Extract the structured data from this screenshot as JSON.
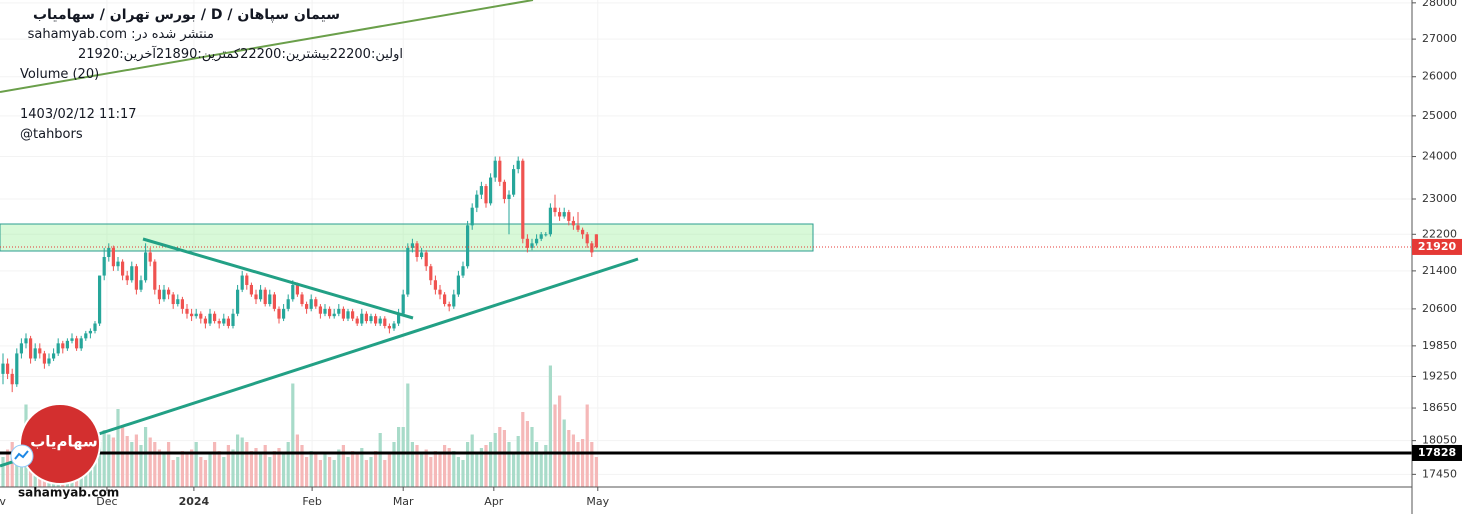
{
  "chart_data": {
    "type": "candlestick",
    "title": "سیمان سپاهان  /  D  /  بورس تهران / سهامیاب",
    "published_label": "منتشر شده در:",
    "published_site": "sahamyab.com",
    "ohlc": [
      {
        "label": "اولین:",
        "value": 22200
      },
      {
        "label": "بیشترین:",
        "value": 22200
      },
      {
        "label": "کمترین:",
        "value": 21890
      },
      {
        "label": "آخرین:",
        "value": 21920
      }
    ],
    "indicator": "Volume (20)",
    "datetime": "1403/02/12 11:17",
    "author": "@tahbors",
    "logo_text": "سهام‌یاب",
    "watermark": "sahamyab.com",
    "log_scale": true,
    "grid": true,
    "up_color": "#26a69a",
    "down_color": "#ef5350",
    "volume_up_color": "#a8dbc9",
    "volume_down_color": "#f5b8b8",
    "ylim": [
      17230,
      28080
    ],
    "yticks": [
      28000,
      27000,
      26000,
      25000,
      24000,
      23000,
      22200,
      21400,
      20600,
      19850,
      19250,
      18650,
      18050,
      17450
    ],
    "xlim": [
      -0.65,
      306.3
    ],
    "xticks": [
      {
        "value": -1.7,
        "label": "Nov"
      },
      {
        "value": 22.6,
        "label": "Dec"
      },
      {
        "value": 41.5,
        "label": "2024"
      },
      {
        "value": 67.2,
        "label": "Feb"
      },
      {
        "value": 87,
        "label": "Mar"
      },
      {
        "value": 106.7,
        "label": "Apr"
      },
      {
        "value": 129.3,
        "label": "May"
      }
    ],
    "last_price": 21920,
    "last_price_color": "#e53935",
    "hline": 17828,
    "hline_color": "#000000",
    "volume_ylim": [
      0,
      100
    ],
    "candles": [
      [
        19300,
        19700,
        19100,
        19500
      ],
      [
        19500,
        19600,
        19200,
        19300
      ],
      [
        19300,
        19400,
        18950,
        19100
      ],
      [
        19100,
        19800,
        19050,
        19700
      ],
      [
        19700,
        20000,
        19600,
        19900
      ],
      [
        19900,
        20100,
        19800,
        20000
      ],
      [
        20000,
        20050,
        19500,
        19600
      ],
      [
        19600,
        19900,
        19550,
        19800
      ],
      [
        19800,
        19900,
        19600,
        19700
      ],
      [
        19700,
        19750,
        19400,
        19500
      ],
      [
        19500,
        19700,
        19450,
        19600
      ],
      [
        19600,
        19800,
        19550,
        19700
      ],
      [
        19700,
        20000,
        19650,
        19900
      ],
      [
        19900,
        19950,
        19700,
        19800
      ],
      [
        19800,
        20000,
        19750,
        19950
      ],
      [
        19950,
        20100,
        19900,
        20000
      ],
      [
        20000,
        20050,
        19750,
        19800
      ],
      [
        19800,
        20050,
        19750,
        20000
      ],
      [
        20000,
        20150,
        19950,
        20100
      ],
      [
        20100,
        20200,
        20000,
        20150
      ],
      [
        20150,
        20350,
        20100,
        20300
      ],
      [
        20300,
        21300,
        20250,
        21300
      ],
      [
        21300,
        21900,
        21200,
        21700
      ],
      [
        21700,
        22000,
        21600,
        21900
      ],
      [
        21900,
        21950,
        21400,
        21500
      ],
      [
        21500,
        21700,
        21400,
        21600
      ],
      [
        21600,
        21650,
        21200,
        21300
      ],
      [
        21300,
        21400,
        21100,
        21200
      ],
      [
        21200,
        21600,
        21150,
        21500
      ],
      [
        21500,
        21550,
        20900,
        21000
      ],
      [
        21000,
        21300,
        20950,
        21200
      ],
      [
        21200,
        22000,
        21150,
        21800
      ],
      [
        21800,
        21900,
        21500,
        21600
      ],
      [
        21600,
        21650,
        20900,
        21000
      ],
      [
        21000,
        21100,
        20700,
        20800
      ],
      [
        20800,
        21100,
        20750,
        21000
      ],
      [
        21000,
        21050,
        20800,
        20900
      ],
      [
        20900,
        20950,
        20600,
        20700
      ],
      [
        20700,
        20900,
        20650,
        20800
      ],
      [
        20800,
        20850,
        20500,
        20600
      ],
      [
        20600,
        20700,
        20400,
        20500
      ],
      [
        20500,
        20600,
        20350,
        20450
      ],
      [
        20450,
        20600,
        20400,
        20500
      ],
      [
        20500,
        20550,
        20300,
        20400
      ],
      [
        20400,
        20450,
        20200,
        20300
      ],
      [
        20300,
        20600,
        20250,
        20500
      ],
      [
        20500,
        20550,
        20300,
        20350
      ],
      [
        20350,
        20400,
        20200,
        20300
      ],
      [
        20300,
        20500,
        20250,
        20400
      ],
      [
        20400,
        20450,
        20200,
        20250
      ],
      [
        20250,
        20600,
        20200,
        20500
      ],
      [
        20500,
        21100,
        20450,
        21000
      ],
      [
        21000,
        21400,
        20950,
        21300
      ],
      [
        21300,
        21350,
        21000,
        21100
      ],
      [
        21100,
        21150,
        20850,
        20900
      ],
      [
        20900,
        21000,
        20700,
        20800
      ],
      [
        20800,
        21100,
        20750,
        21000
      ],
      [
        21000,
        21050,
        20650,
        20700
      ],
      [
        20700,
        21000,
        20650,
        20900
      ],
      [
        20900,
        20950,
        20550,
        20600
      ],
      [
        20600,
        20650,
        20300,
        20400
      ],
      [
        20400,
        20700,
        20350,
        20600
      ],
      [
        20600,
        20900,
        20550,
        20800
      ],
      [
        20800,
        21200,
        20750,
        21100
      ],
      [
        21100,
        21150,
        20850,
        20900
      ],
      [
        20900,
        20950,
        20650,
        20700
      ],
      [
        20700,
        20750,
        20500,
        20600
      ],
      [
        20600,
        20900,
        20550,
        20800
      ],
      [
        20800,
        20850,
        20600,
        20650
      ],
      [
        20650,
        20700,
        20400,
        20500
      ],
      [
        20500,
        20700,
        20450,
        20600
      ],
      [
        20600,
        20650,
        20400,
        20450
      ],
      [
        20450,
        20600,
        20400,
        20500
      ],
      [
        20500,
        20700,
        20450,
        20600
      ],
      [
        20600,
        20650,
        20350,
        20400
      ],
      [
        20400,
        20600,
        20350,
        20550
      ],
      [
        20550,
        20600,
        20350,
        20400
      ],
      [
        20400,
        20450,
        20250,
        20300
      ],
      [
        20300,
        20600,
        20250,
        20500
      ],
      [
        20500,
        20550,
        20300,
        20350
      ],
      [
        20350,
        20500,
        20300,
        20450
      ],
      [
        20450,
        20500,
        20250,
        20300
      ],
      [
        20300,
        20450,
        20250,
        20400
      ],
      [
        20400,
        20450,
        20200,
        20250
      ],
      [
        20250,
        20300,
        20100,
        20200
      ],
      [
        20200,
        20350,
        20150,
        20300
      ],
      [
        20300,
        20600,
        20250,
        20500
      ],
      [
        20500,
        21000,
        20450,
        20900
      ],
      [
        20900,
        22000,
        20850,
        21900
      ],
      [
        21900,
        22100,
        21800,
        22000
      ],
      [
        22000,
        22050,
        21600,
        21700
      ],
      [
        21700,
        21900,
        21650,
        21800
      ],
      [
        21800,
        21850,
        21400,
        21500
      ],
      [
        21500,
        21550,
        21100,
        21200
      ],
      [
        21200,
        21300,
        20900,
        21000
      ],
      [
        21000,
        21100,
        20800,
        20900
      ],
      [
        20900,
        20950,
        20650,
        20700
      ],
      [
        20700,
        20750,
        20550,
        20650
      ],
      [
        20650,
        21000,
        20600,
        20900
      ],
      [
        20900,
        21400,
        20850,
        21300
      ],
      [
        21300,
        21600,
        21250,
        21500
      ],
      [
        21500,
        22500,
        21450,
        22400
      ],
      [
        22400,
        22900,
        22300,
        22800
      ],
      [
        22800,
        23200,
        22700,
        23100
      ],
      [
        23100,
        23400,
        23000,
        23300
      ],
      [
        23300,
        23350,
        22800,
        22900
      ],
      [
        22900,
        23600,
        22850,
        23500
      ],
      [
        23500,
        24000,
        23400,
        23900
      ],
      [
        23900,
        24000,
        23300,
        23400
      ],
      [
        23400,
        23450,
        22900,
        23000
      ],
      [
        23000,
        23200,
        22200,
        23100
      ],
      [
        23100,
        23800,
        23050,
        23700
      ],
      [
        23700,
        24000,
        23600,
        23900
      ],
      [
        23900,
        23950,
        22000,
        22100
      ],
      [
        22100,
        22200,
        21800,
        21900
      ],
      [
        21900,
        22100,
        21850,
        22000
      ],
      [
        22000,
        22200,
        21950,
        22100
      ],
      [
        22100,
        22250,
        22050,
        22200
      ],
      [
        22200,
        22250,
        22150,
        22200
      ],
      [
        22200,
        22900,
        22150,
        22800
      ],
      [
        22800,
        23100,
        22600,
        22700
      ],
      [
        22700,
        22800,
        22500,
        22600
      ],
      [
        22600,
        22800,
        22550,
        22700
      ],
      [
        22700,
        22750,
        22400,
        22500
      ],
      [
        22500,
        22600,
        22300,
        22400
      ],
      [
        22400,
        22700,
        22250,
        22300
      ],
      [
        22300,
        22350,
        22100,
        22200
      ],
      [
        22200,
        22250,
        21900,
        22000
      ],
      [
        22000,
        22050,
        21700,
        21800
      ],
      [
        22200,
        22200,
        21890,
        21920
      ]
    ],
    "volumes": [
      20,
      25,
      30,
      18,
      22,
      55,
      45,
      30,
      25,
      20,
      15,
      18,
      22,
      20,
      25,
      18,
      14,
      20,
      16,
      24,
      22,
      30,
      38,
      35,
      33,
      52,
      40,
      34,
      30,
      35,
      28,
      40,
      33,
      30,
      25,
      22,
      30,
      18,
      20,
      24,
      22,
      25,
      30,
      20,
      18,
      22,
      30,
      24,
      20,
      28,
      25,
      35,
      33,
      30,
      24,
      26,
      22,
      28,
      20,
      24,
      26,
      22,
      30,
      69,
      35,
      28,
      20,
      24,
      22,
      18,
      22,
      20,
      18,
      25,
      28,
      20,
      24,
      22,
      26,
      18,
      20,
      24,
      36,
      18,
      22,
      30,
      40,
      40,
      69,
      30,
      28,
      22,
      25,
      20,
      24,
      22,
      28,
      26,
      24,
      20,
      18,
      30,
      35,
      22,
      26,
      28,
      30,
      36,
      40,
      38,
      30,
      22,
      34,
      50,
      44,
      40,
      30,
      22,
      28,
      81,
      55,
      61,
      45,
      38,
      35,
      30,
      32,
      55,
      30,
      20
    ]
  }
}
